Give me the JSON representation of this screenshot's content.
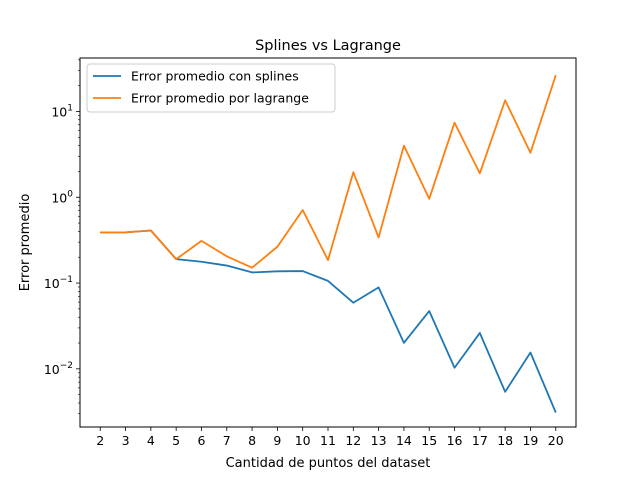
{
  "chart_data": {
    "type": "line",
    "title": "Splines vs Lagrange",
    "xlabel": "Cantidad de puntos del dataset",
    "ylabel": "Error promedio",
    "yscale": "log",
    "x": [
      2,
      3,
      4,
      5,
      6,
      7,
      8,
      9,
      10,
      11,
      12,
      13,
      14,
      15,
      16,
      17,
      18,
      19,
      20
    ],
    "xlim": [
      1.2,
      20.8
    ],
    "ylim": [
      0.0021,
      42
    ],
    "x_ticks": [
      "2",
      "3",
      "4",
      "5",
      "6",
      "7",
      "8",
      "9",
      "10",
      "11",
      "12",
      "13",
      "14",
      "15",
      "16",
      "17",
      "18",
      "19",
      "20"
    ],
    "y_ticks": [
      {
        "value": 0.01,
        "base": "10",
        "exp": "−2"
      },
      {
        "value": 0.1,
        "base": "10",
        "exp": "−1"
      },
      {
        "value": 1,
        "base": "10",
        "exp": "0"
      },
      {
        "value": 10,
        "base": "10",
        "exp": "1"
      }
    ],
    "grid": false,
    "legend_position": "upper-left",
    "series": [
      {
        "name": "Error promedio con splines",
        "color": "#1f77b4",
        "values": [
          0.39,
          0.39,
          0.41,
          0.19,
          0.177,
          0.16,
          0.133,
          0.137,
          0.138,
          0.106,
          0.059,
          0.089,
          0.0201,
          0.0472,
          0.0103,
          0.0262,
          0.0054,
          0.0155,
          0.0031
        ]
      },
      {
        "name": "Error promedio por lagrange",
        "color": "#ff7f0e",
        "values": [
          0.39,
          0.39,
          0.41,
          0.19,
          0.31,
          0.205,
          0.151,
          0.265,
          0.71,
          0.185,
          1.96,
          0.34,
          4.0,
          0.96,
          7.4,
          1.9,
          13.5,
          3.3,
          26.5
        ]
      }
    ]
  }
}
